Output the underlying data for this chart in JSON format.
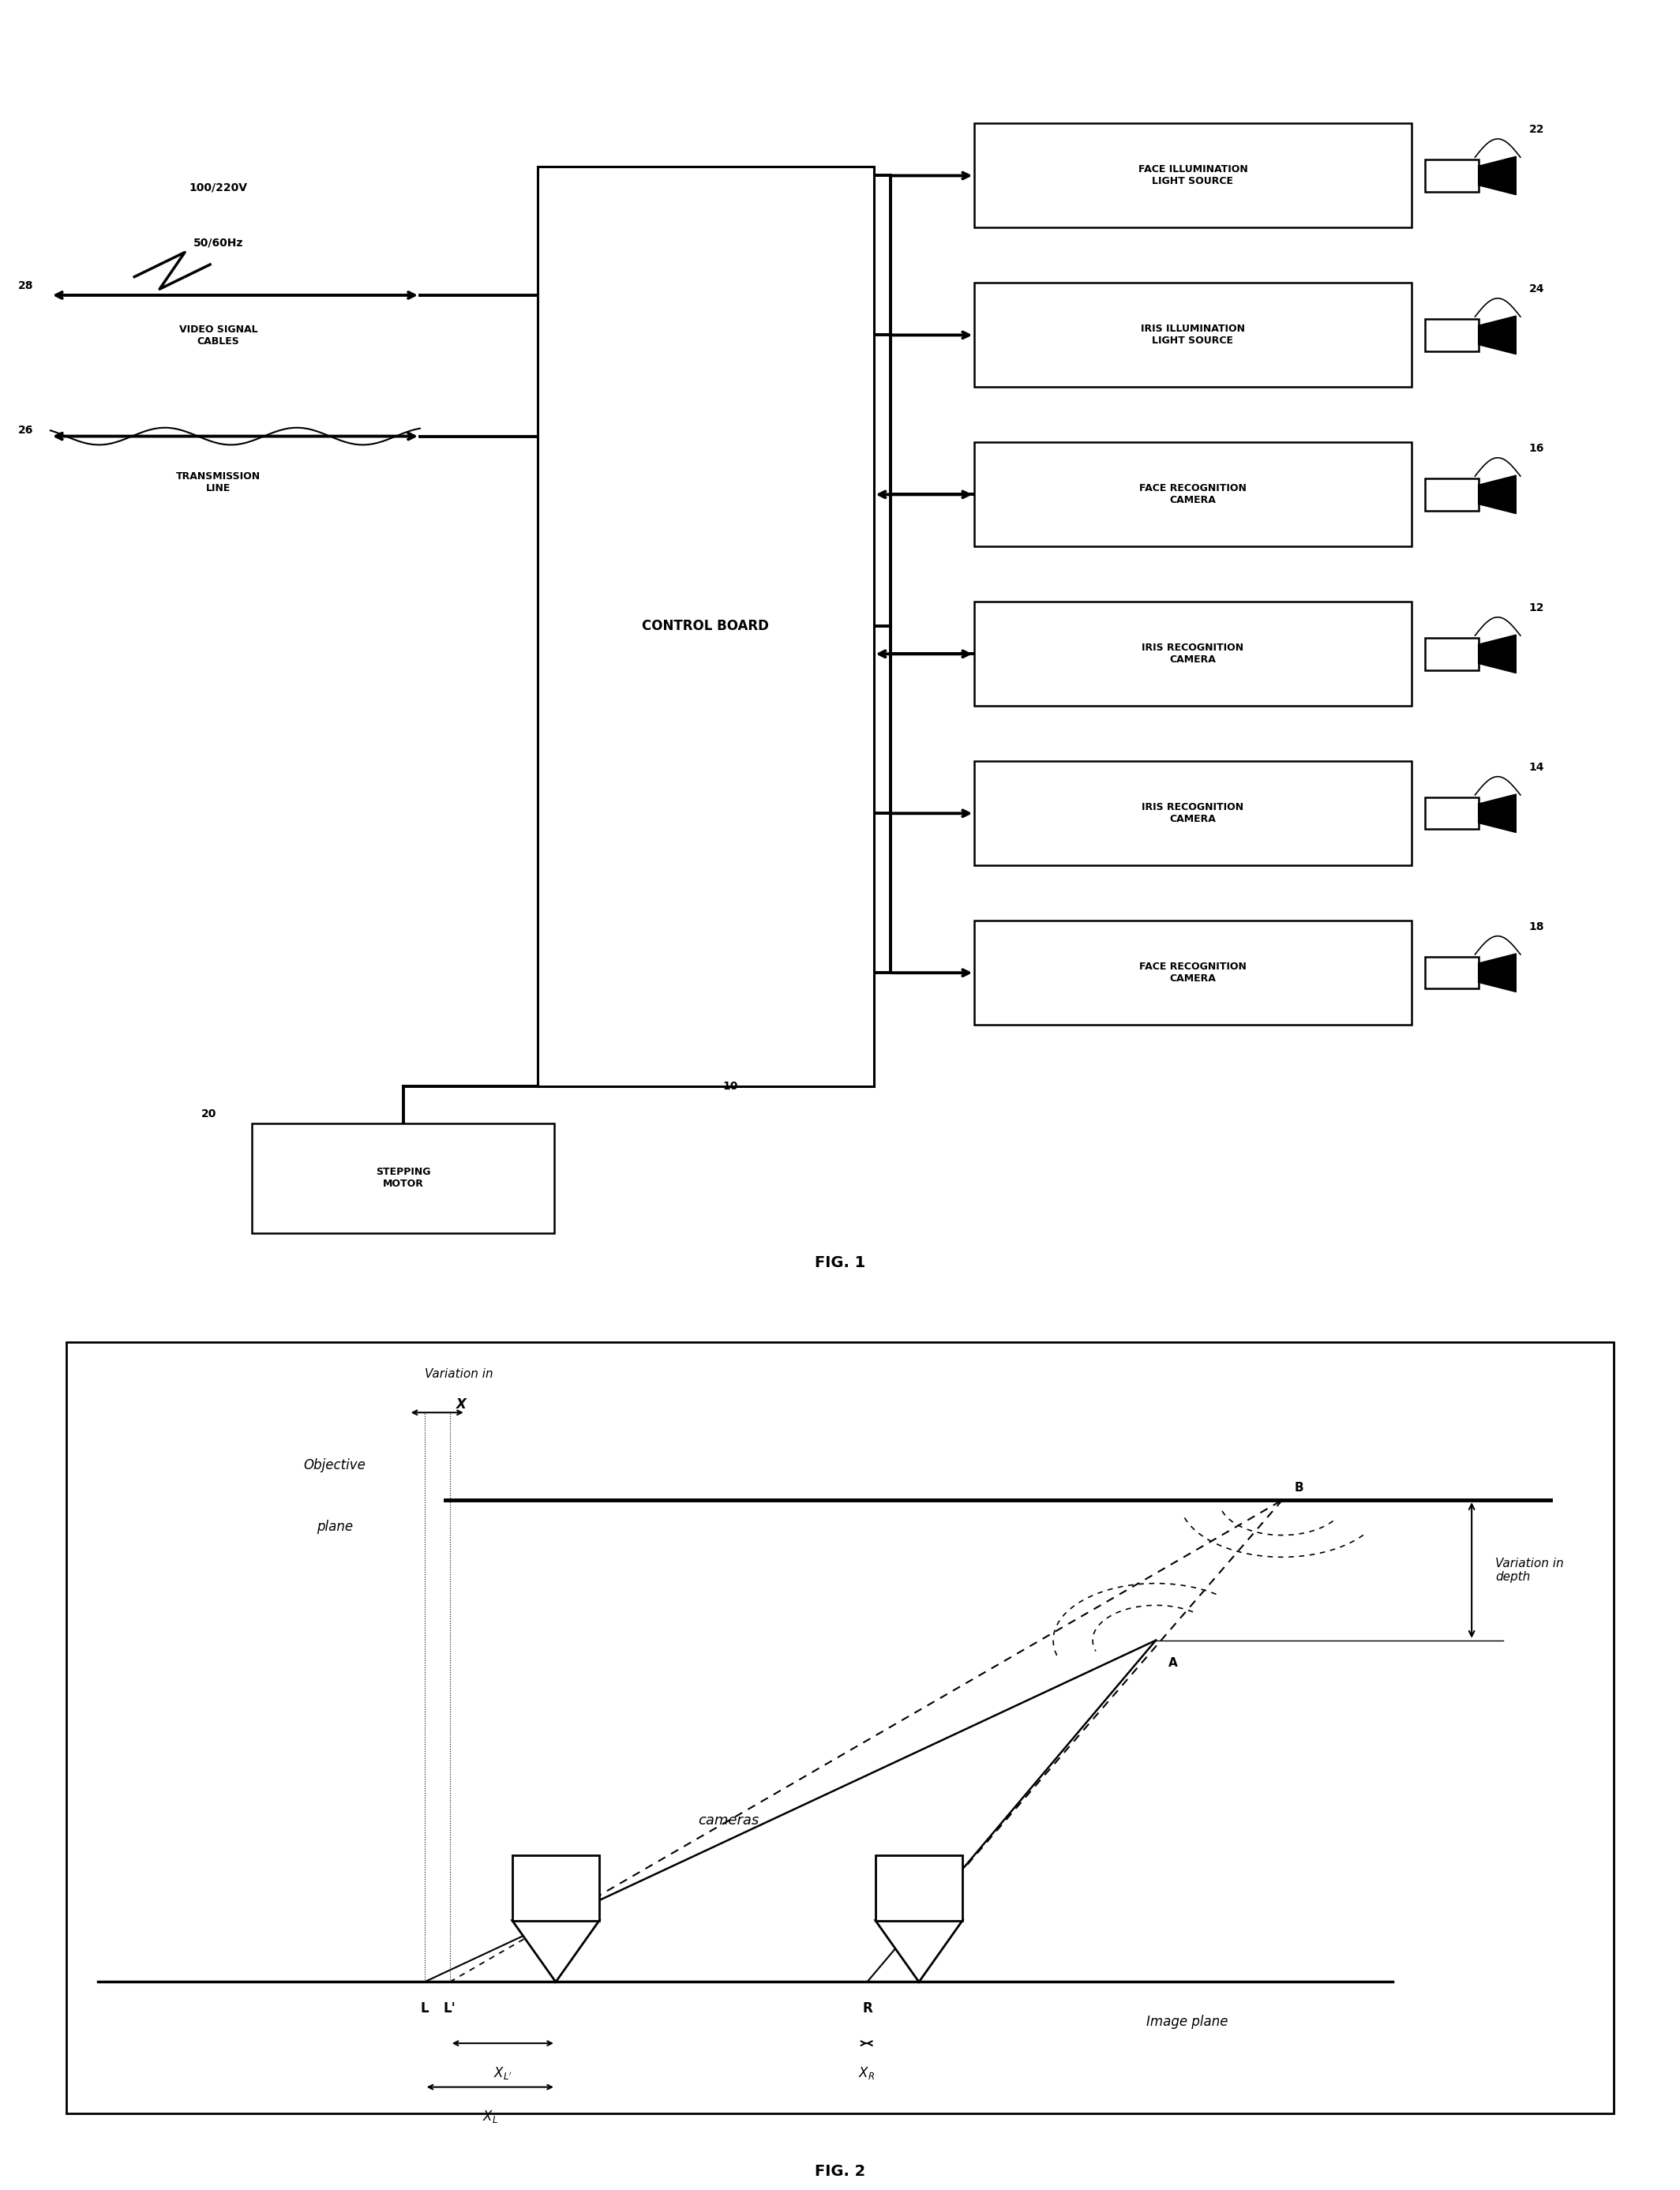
{
  "fig_width": 21.28,
  "fig_height": 27.74,
  "bg_color": "#ffffff",
  "fig1_label": "FIG. 1",
  "fig2_label": "FIG. 2",
  "components": [
    {
      "label": "FACE ILLUMINATION\nLIGHT SOURCE",
      "ref": "22",
      "row": 0
    },
    {
      "label": "IRIS ILLUMINATION\nLIGHT SOURCE",
      "ref": "24",
      "row": 1
    },
    {
      "label": "FACE RECOGNITION\nCAMERA",
      "ref": "16",
      "row": 2
    },
    {
      "label": "IRIS RECOGNITION\nCAMERA",
      "ref": "12",
      "row": 3
    },
    {
      "label": "IRIS RECOGNITION\nCAMERA",
      "ref": "14",
      "row": 4
    },
    {
      "label": "FACE RECOGNITION\nCAMERA",
      "ref": "18",
      "row": 5
    }
  ],
  "cb_label": "CONTROL BOARD",
  "sm_label": "STEPPING\nMOTOR",
  "power_label1": "100/220V",
  "power_label2": "50/60Hz",
  "video_label": "VIDEO SIGNAL\nCABLES",
  "trans_label": "TRANSMISSION\nLINE",
  "ref28": "28",
  "ref26": "26",
  "ref20": "20",
  "ref10": "10"
}
